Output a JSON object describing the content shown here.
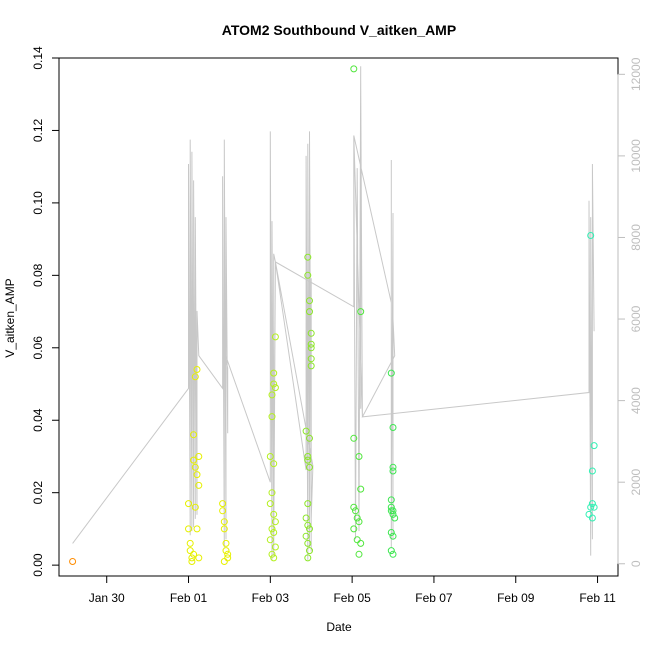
{
  "chart_data": {
    "type": "scatter",
    "title": "ATOM2 Southbound V_aitken_AMP",
    "xlabel": "Date",
    "ylabel": "V_aitken_AMP",
    "x_ticks": [
      "Jan 30",
      "Feb 01",
      "Feb 03",
      "Feb 05",
      "Feb 07",
      "Feb 09",
      "Feb 11"
    ],
    "y_ticks": [
      "0.00",
      "0.02",
      "0.04",
      "0.06",
      "0.08",
      "0.10",
      "0.12",
      "0.14"
    ],
    "y2_ticks": [
      "0",
      "2000",
      "4000",
      "6000",
      "8000",
      "10000",
      "12000"
    ],
    "xlim": [
      "2011-01-28T20:00",
      "2011-02-11T12:00"
    ],
    "ylim": [
      -0.003,
      0.14
    ],
    "y2lim": [
      -300,
      12400
    ],
    "line_color": "#c8c8c8",
    "y2_axis_color": "#bebebe",
    "series": [
      {
        "color": "#ff8c00",
        "points": [
          [
            "2011-01-29T04:00",
            0.001
          ]
        ]
      },
      {
        "color": "#e6f000",
        "points": [
          [
            "2011-02-01T00:00",
            0.017
          ],
          [
            "2011-02-01T00:00",
            0.01
          ],
          [
            "2011-02-01T01:00",
            0.006
          ],
          [
            "2011-02-01T01:00",
            0.004
          ],
          [
            "2011-02-01T02:00",
            0.002
          ],
          [
            "2011-02-01T02:00",
            0.001
          ],
          [
            "2011-02-01T03:00",
            0.036
          ],
          [
            "2011-02-01T03:00",
            0.029
          ],
          [
            "2011-02-01T04:00",
            0.027
          ],
          [
            "2011-02-01T04:00",
            0.052
          ],
          [
            "2011-02-01T05:00",
            0.054
          ],
          [
            "2011-02-01T05:00",
            0.025
          ],
          [
            "2011-02-01T06:00",
            0.022
          ],
          [
            "2011-02-01T06:00",
            0.03
          ],
          [
            "2011-02-01T04:00",
            0.016
          ],
          [
            "2011-02-01T05:00",
            0.01
          ],
          [
            "2011-02-01T03:00",
            0.003
          ],
          [
            "2011-02-01T06:00",
            0.002
          ],
          [
            "2011-02-01T20:00",
            0.017
          ],
          [
            "2011-02-01T20:00",
            0.015
          ],
          [
            "2011-02-01T21:00",
            0.012
          ],
          [
            "2011-02-01T21:00",
            0.01
          ],
          [
            "2011-02-01T22:00",
            0.006
          ],
          [
            "2011-02-01T22:00",
            0.004
          ],
          [
            "2011-02-01T23:00",
            0.003
          ],
          [
            "2011-02-01T23:00",
            0.002
          ],
          [
            "2011-02-01T21:00",
            0.001
          ]
        ]
      },
      {
        "color": "#b4f01e",
        "points": [
          [
            "2011-02-03T00:00",
            0.017
          ],
          [
            "2011-02-03T00:00",
            0.03
          ],
          [
            "2011-02-03T01:00",
            0.041
          ],
          [
            "2011-02-03T01:00",
            0.047
          ],
          [
            "2011-02-03T02:00",
            0.05
          ],
          [
            "2011-02-03T02:00",
            0.053
          ],
          [
            "2011-02-03T03:00",
            0.063
          ],
          [
            "2011-02-03T03:00",
            0.049
          ],
          [
            "2011-02-03T02:00",
            0.028
          ],
          [
            "2011-02-03T01:00",
            0.02
          ],
          [
            "2011-02-03T02:00",
            0.014
          ],
          [
            "2011-02-03T03:00",
            0.012
          ],
          [
            "2011-02-03T01:00",
            0.01
          ],
          [
            "2011-02-03T02:00",
            0.009
          ],
          [
            "2011-02-03T00:00",
            0.007
          ],
          [
            "2011-02-03T03:00",
            0.005
          ],
          [
            "2011-02-03T01:00",
            0.003
          ],
          [
            "2011-02-03T02:00",
            0.002
          ]
        ]
      },
      {
        "color": "#8ce628",
        "points": [
          [
            "2011-02-03T21:00",
            0.037
          ],
          [
            "2011-02-03T22:00",
            0.03
          ],
          [
            "2011-02-03T22:00",
            0.029
          ],
          [
            "2011-02-03T23:00",
            0.035
          ],
          [
            "2011-02-03T23:00",
            0.027
          ],
          [
            "2011-02-03T22:00",
            0.08
          ],
          [
            "2011-02-03T22:00",
            0.085
          ],
          [
            "2011-02-03T23:00",
            0.07
          ],
          [
            "2011-02-03T23:00",
            0.073
          ],
          [
            "2011-02-04T00:00",
            0.064
          ],
          [
            "2011-02-04T00:00",
            0.061
          ],
          [
            "2011-02-04T00:00",
            0.06
          ],
          [
            "2011-02-04T00:00",
            0.057
          ],
          [
            "2011-02-04T00:00",
            0.055
          ],
          [
            "2011-02-03T22:00",
            0.017
          ],
          [
            "2011-02-03T21:00",
            0.013
          ],
          [
            "2011-02-03T22:00",
            0.011
          ],
          [
            "2011-02-03T23:00",
            0.01
          ],
          [
            "2011-02-03T21:00",
            0.008
          ],
          [
            "2011-02-03T22:00",
            0.006
          ],
          [
            "2011-02-03T23:00",
            0.004
          ],
          [
            "2011-02-03T22:00",
            0.002
          ]
        ]
      },
      {
        "color": "#50e63c",
        "points": [
          [
            "2011-02-05T01:00",
            0.137
          ],
          [
            "2011-02-05T01:00",
            0.035
          ],
          [
            "2011-02-05T04:00",
            0.03
          ],
          [
            "2011-02-05T05:00",
            0.021
          ],
          [
            "2011-02-05T05:00",
            0.07
          ],
          [
            "2011-02-05T01:00",
            0.016
          ],
          [
            "2011-02-05T02:00",
            0.015
          ],
          [
            "2011-02-05T03:00",
            0.013
          ],
          [
            "2011-02-05T04:00",
            0.012
          ],
          [
            "2011-02-05T01:00",
            0.01
          ],
          [
            "2011-02-05T03:00",
            0.007
          ],
          [
            "2011-02-05T05:00",
            0.006
          ],
          [
            "2011-02-05T04:00",
            0.003
          ]
        ]
      },
      {
        "color": "#3ce650",
        "points": [
          [
            "2011-02-05T23:00",
            0.053
          ],
          [
            "2011-02-06T00:00",
            0.038
          ],
          [
            "2011-02-06T00:00",
            0.027
          ],
          [
            "2011-02-06T00:00",
            0.026
          ],
          [
            "2011-02-05T23:00",
            0.018
          ],
          [
            "2011-02-05T23:00",
            0.016
          ],
          [
            "2011-02-05T23:00",
            0.015
          ],
          [
            "2011-02-06T00:00",
            0.015
          ],
          [
            "2011-02-06T00:00",
            0.014
          ],
          [
            "2011-02-06T01:00",
            0.013
          ],
          [
            "2011-02-05T23:00",
            0.009
          ],
          [
            "2011-02-06T00:00",
            0.008
          ],
          [
            "2011-02-05T23:00",
            0.004
          ],
          [
            "2011-02-06T00:00",
            0.003
          ]
        ]
      },
      {
        "color": "#32f0b4",
        "points": [
          [
            "2011-02-10T20:00",
            0.091
          ],
          [
            "2011-02-10T21:00",
            0.026
          ],
          [
            "2011-02-10T22:00",
            0.033
          ],
          [
            "2011-02-10T20:00",
            0.016
          ],
          [
            "2011-02-10T19:00",
            0.014
          ],
          [
            "2011-02-10T21:00",
            0.017
          ],
          [
            "2011-02-10T22:00",
            0.016
          ],
          [
            "2011-02-10T21:00",
            0.013
          ]
        ]
      }
    ],
    "line_series": [
      [
        "2011-01-29T04:00",
        500
      ],
      [
        "2011-02-01T00:00",
        4300
      ],
      [
        "2011-02-01T00:00",
        9800
      ],
      [
        "2011-02-01T01:00",
        700
      ],
      [
        "2011-02-01T01:00",
        10400
      ],
      [
        "2011-02-01T02:00",
        800
      ],
      [
        "2011-02-01T02:00",
        10100
      ],
      [
        "2011-02-01T03:00",
        900
      ],
      [
        "2011-02-01T03:00",
        9400
      ],
      [
        "2011-02-01T04:00",
        1100
      ],
      [
        "2011-02-01T04:00",
        8500
      ],
      [
        "2011-02-01T05:00",
        1200
      ],
      [
        "2011-02-01T05:00",
        6200
      ],
      [
        "2011-02-01T06:00",
        5100
      ],
      [
        "2011-02-01T20:00",
        4300
      ],
      [
        "2011-02-01T20:00",
        9500
      ],
      [
        "2011-02-01T21:00",
        400
      ],
      [
        "2011-02-01T21:00",
        10400
      ],
      [
        "2011-02-01T22:00",
        600
      ],
      [
        "2011-02-01T22:00",
        8500
      ],
      [
        "2011-02-01T23:00",
        3200
      ],
      [
        "2011-02-01T23:00",
        4800
      ],
      [
        "2011-02-01T21:00",
        5200
      ],
      [
        "2011-02-03T00:00",
        2000
      ],
      [
        "2011-02-03T00:00",
        10600
      ],
      [
        "2011-02-03T01:00",
        100
      ],
      [
        "2011-02-03T01:00",
        8400
      ],
      [
        "2011-02-03T02:00",
        200
      ],
      [
        "2011-02-03T02:00",
        7600
      ],
      [
        "2011-02-03T03:00",
        7400
      ],
      [
        "2011-02-03T02:00",
        200
      ],
      [
        "2011-02-03T03:00",
        7400
      ],
      [
        "2011-02-03T21:00",
        2300
      ],
      [
        "2011-02-03T21:00",
        10000
      ],
      [
        "2011-02-03T22:00",
        100
      ],
      [
        "2011-02-03T22:00",
        10300
      ],
      [
        "2011-02-03T23:00",
        400
      ],
      [
        "2011-02-03T23:00",
        10600
      ],
      [
        "2011-02-04T00:00",
        300
      ],
      [
        "2011-02-04T00:00",
        7000
      ],
      [
        "2011-02-04T00:00",
        1100
      ],
      [
        "2011-02-04T01:00",
        2400
      ],
      [
        "2011-02-03T03:00",
        7400
      ],
      [
        "2011-02-05T01:00",
        6300
      ],
      [
        "2011-02-05T01:00",
        10500
      ],
      [
        "2011-02-05T02:00",
        600
      ],
      [
        "2011-02-05T03:00",
        9700
      ],
      [
        "2011-02-05T04:00",
        800
      ],
      [
        "2011-02-05T05:00",
        12200
      ],
      [
        "2011-02-05T05:00",
        3800
      ],
      [
        "2011-02-05T05:00",
        11900
      ],
      [
        "2011-02-05T06:00",
        3600
      ],
      [
        "2011-02-05T01:00",
        10500
      ],
      [
        "2011-02-05T23:00",
        6400
      ],
      [
        "2011-02-05T23:00",
        9900
      ],
      [
        "2011-02-05T23:00",
        400
      ],
      [
        "2011-02-06T00:00",
        8600
      ],
      [
        "2011-02-06T00:00",
        600
      ],
      [
        "2011-02-06T00:00",
        6000
      ],
      [
        "2011-02-06T01:00",
        5100
      ],
      [
        "2011-02-05T06:00",
        3600
      ],
      [
        "2011-02-10T19:00",
        4200
      ],
      [
        "2011-02-10T19:00",
        8900
      ],
      [
        "2011-02-10T20:00",
        200
      ],
      [
        "2011-02-10T20:00",
        8500
      ],
      [
        "2011-02-10T21:00",
        600
      ],
      [
        "2011-02-10T21:00",
        9800
      ],
      [
        "2011-02-10T22:00",
        5700
      ]
    ]
  }
}
